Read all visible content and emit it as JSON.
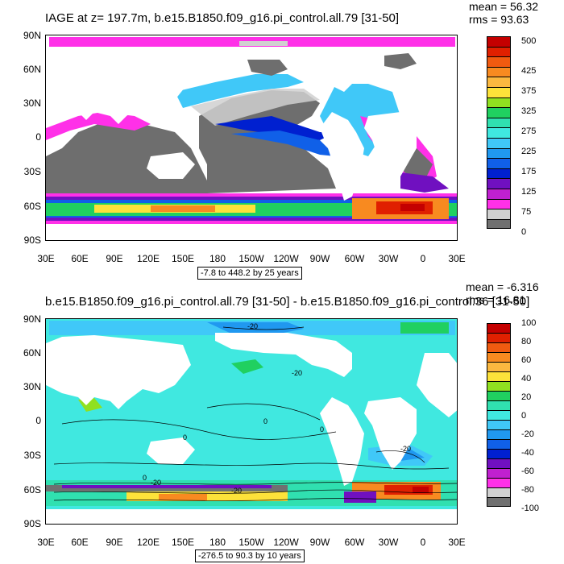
{
  "panel_top": {
    "title": "IAGE at z= 197.7m, b.e15.B1850.f09_g16.pi_control.all.79 [31-50]",
    "stats": [
      "mean = 56.32",
      "rms = 93.63"
    ],
    "y_labels": [
      "90N",
      "60N",
      "30N",
      "0",
      "30S",
      "60S",
      "90S"
    ],
    "x_labels": [
      "30E",
      "60E",
      "90E",
      "120E",
      "150E",
      "180",
      "150W",
      "120W",
      "90W",
      "60W",
      "30W",
      "0",
      "30E"
    ],
    "contour_info": "-7.8 to 448.2 by 25 years",
    "colorbar_labels": [
      "500",
      "425",
      "375",
      "325",
      "275",
      "225",
      "175",
      "125",
      "75",
      "0"
    ],
    "colorbar_colors": [
      "#c40000",
      "#e02000",
      "#f05a10",
      "#f88a20",
      "#fbb840",
      "#fde23a",
      "#90e020",
      "#20d060",
      "#30e0b0",
      "#40e8e0",
      "#40c8f8",
      "#2098f0",
      "#1060e8",
      "#0020d0",
      "#7010c0",
      "#c020d0",
      "#ff30e8",
      "#d0d0d0",
      "#707070"
    ],
    "legend_ocean": "#50e8d0",
    "land_color": "#ffffff",
    "grey_color": "#6e6e6e"
  },
  "panel_bottom": {
    "title": "b.e15.B1850.f09_g16.pi_control.all.79 [31-50] - b.e15.B1850.f09_g16.pi_control.36 [31-50]",
    "stats": [
      "mean = -6.316",
      "rms = 16.81"
    ],
    "y_labels": [
      "90N",
      "60N",
      "30N",
      "0",
      "30S",
      "60S",
      "90S"
    ],
    "x_labels": [
      "30E",
      "60E",
      "90E",
      "120E",
      "150E",
      "180",
      "150W",
      "120W",
      "90W",
      "60W",
      "30W",
      "0",
      "30E"
    ],
    "contour_info": "-276.5 to 90.3 by 10 years",
    "colorbar_labels": [
      "100",
      "80",
      "60",
      "40",
      "20",
      "0",
      "-20",
      "-40",
      "-60",
      "-80",
      "-100"
    ],
    "colorbar_colors": [
      "#c40000",
      "#e02000",
      "#f05a10",
      "#f88a20",
      "#fbb840",
      "#fde23a",
      "#90e020",
      "#20d060",
      "#30e0b0",
      "#40e8e0",
      "#40c8f8",
      "#2098f0",
      "#1060e8",
      "#0020d0",
      "#7010c0",
      "#c020d0",
      "#ff30e8",
      "#d0d0d0",
      "#707070"
    ],
    "contour_labels": [
      "-20",
      "-20",
      "0",
      "0",
      "0",
      "0",
      "-20",
      "-20",
      "-20"
    ]
  }
}
